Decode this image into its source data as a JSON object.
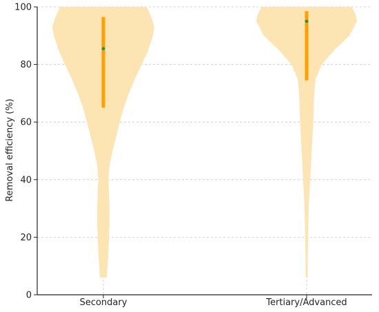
{
  "chart_data": {
    "type": "violin",
    "title": "",
    "xlabel": "",
    "ylabel": "Removal efficiency (%)",
    "ylim": [
      0,
      100
    ],
    "yticks": [
      0,
      20,
      40,
      60,
      80,
      100
    ],
    "grid": true,
    "categories": [
      "Secondary",
      "Tertiary/Advanced"
    ],
    "series": [
      {
        "category": "Secondary",
        "min": 6,
        "max": 100,
        "q1": 65,
        "median": 85.5,
        "q3": 96.5,
        "density": [
          [
            6,
            0.07
          ],
          [
            10,
            0.08
          ],
          [
            15,
            0.1
          ],
          [
            20,
            0.11
          ],
          [
            25,
            0.12
          ],
          [
            30,
            0.12
          ],
          [
            35,
            0.11
          ],
          [
            40,
            0.1
          ],
          [
            45,
            0.12
          ],
          [
            50,
            0.18
          ],
          [
            55,
            0.25
          ],
          [
            60,
            0.32
          ],
          [
            65,
            0.4
          ],
          [
            70,
            0.5
          ],
          [
            75,
            0.62
          ],
          [
            80,
            0.75
          ],
          [
            85,
            0.88
          ],
          [
            90,
            0.97
          ],
          [
            93,
            1.0
          ],
          [
            96,
            0.95
          ],
          [
            100,
            0.85
          ]
        ]
      },
      {
        "category": "Tertiary/Advanced",
        "min": 6,
        "max": 100,
        "q1": 74.5,
        "median": 95,
        "q3": 98.5,
        "density": [
          [
            6,
            0.02
          ],
          [
            10,
            0.02
          ],
          [
            20,
            0.03
          ],
          [
            30,
            0.04
          ],
          [
            40,
            0.07
          ],
          [
            50,
            0.1
          ],
          [
            60,
            0.13
          ],
          [
            70,
            0.15
          ],
          [
            75,
            0.18
          ],
          [
            80,
            0.3
          ],
          [
            85,
            0.55
          ],
          [
            90,
            0.85
          ],
          [
            95,
            1.0
          ],
          [
            97,
            0.98
          ],
          [
            100,
            0.9
          ]
        ]
      }
    ],
    "colors": {
      "violin_fill": "#fde4b3",
      "box": "#ff9f00",
      "median": "#2e8b57",
      "grid": "#c8c8c8",
      "axis": "#222222"
    }
  }
}
